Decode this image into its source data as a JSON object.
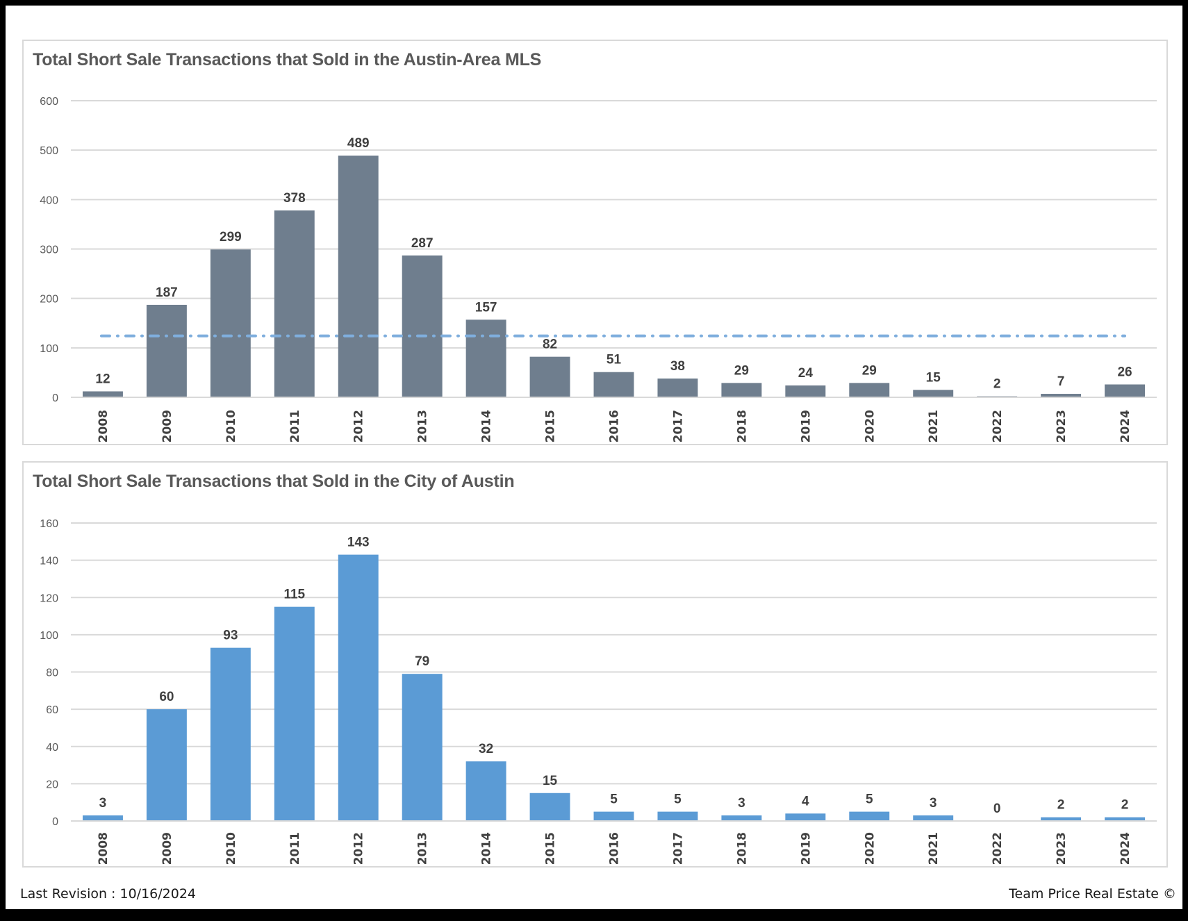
{
  "chart_data": [
    {
      "type": "bar",
      "title": "Total Short Sale Transactions that Sold in the Austin-Area MLS",
      "xlabel": "",
      "ylabel": "",
      "categories": [
        "2008",
        "2009",
        "2010",
        "2011",
        "2012",
        "2013",
        "2014",
        "2015",
        "2016",
        "2017",
        "2018",
        "2019",
        "2020",
        "2021",
        "2022",
        "2023",
        "2024"
      ],
      "values": [
        12,
        187,
        299,
        378,
        489,
        287,
        157,
        82,
        51,
        38,
        29,
        24,
        29,
        15,
        2,
        7,
        26
      ],
      "ylim": [
        0,
        600
      ],
      "yticks": [
        0,
        100,
        200,
        300,
        400,
        500,
        600
      ],
      "grid": true,
      "bar_color": "#6F7E8E",
      "average_line": {
        "value": 124.2,
        "style": "dash-dot",
        "color": "#7FAEDD"
      },
      "legend": "none"
    },
    {
      "type": "bar",
      "title": "Total Short Sale Transactions that Sold in the City of Austin",
      "xlabel": "",
      "ylabel": "",
      "categories": [
        "2008",
        "2009",
        "2010",
        "2011",
        "2012",
        "2013",
        "2014",
        "2015",
        "2016",
        "2017",
        "2018",
        "2019",
        "2020",
        "2021",
        "2022",
        "2023",
        "2024"
      ],
      "values": [
        3,
        60,
        93,
        115,
        143,
        79,
        32,
        15,
        5,
        5,
        3,
        4,
        5,
        3,
        0,
        2,
        2
      ],
      "ylim": [
        0,
        160
      ],
      "yticks": [
        0,
        20,
        40,
        60,
        80,
        100,
        120,
        140,
        160
      ],
      "grid": true,
      "bar_color": "#5B9BD5",
      "legend": "none"
    }
  ],
  "footer": {
    "last_revision": "Last Revision : 10/16/2024",
    "copyright": "Team Price Real Estate ©"
  }
}
